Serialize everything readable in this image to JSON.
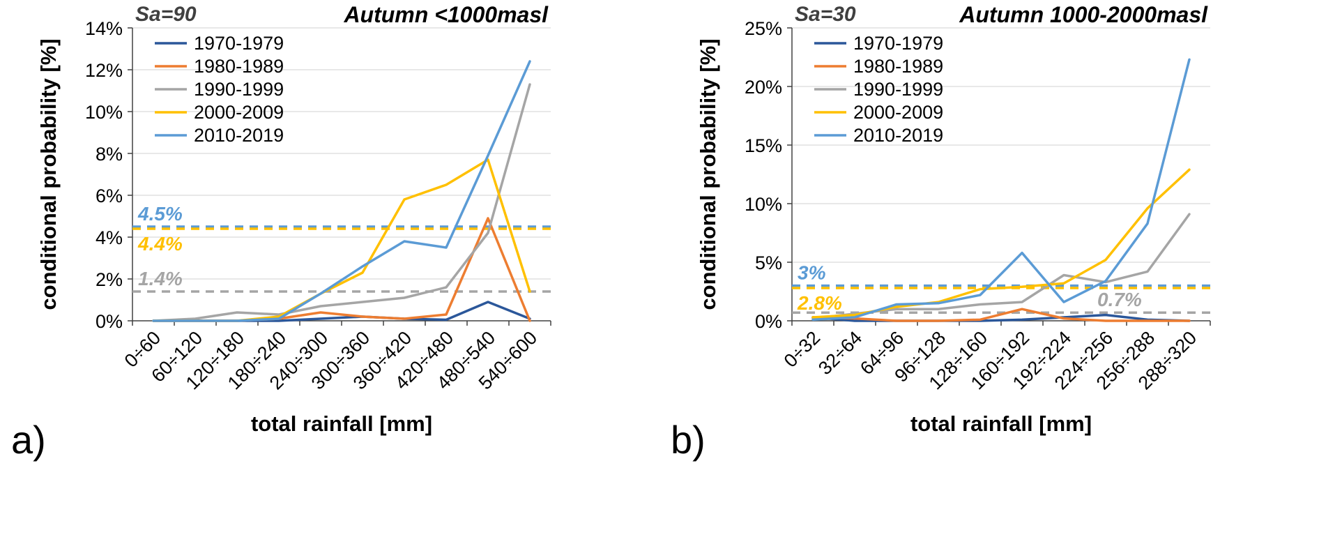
{
  "chart_data": [
    {
      "type": "line",
      "panel_label": "a)",
      "annotation": "Sa=90",
      "title": "Autumn <1000masl",
      "xlabel": "total rainfall [mm]",
      "ylabel": "conditional probability [%]",
      "categories": [
        "0÷60",
        "60÷120",
        "120÷180",
        "180÷240",
        "240÷300",
        "300÷360",
        "360÷420",
        "420÷480",
        "480÷540",
        "540÷600"
      ],
      "ylim": [
        0,
        14
      ],
      "ytick_values": [
        0,
        2,
        4,
        6,
        8,
        10,
        12,
        14
      ],
      "ytick_labels": [
        "0%",
        "2%",
        "4%",
        "6%",
        "8%",
        "10%",
        "12%",
        "14%"
      ],
      "grid": true,
      "legend_position": "top-left-inside",
      "series": [
        {
          "name": "1970-1979",
          "color": "#2B579A",
          "values": [
            0,
            0,
            0,
            0,
            0.1,
            0.2,
            0.1,
            0.05,
            0.9,
            0.1
          ]
        },
        {
          "name": "1980-1989",
          "color": "#ED7D31",
          "values": [
            0,
            0,
            0,
            0.1,
            0.4,
            0.2,
            0.1,
            0.3,
            4.9,
            0
          ]
        },
        {
          "name": "1990-1999",
          "color": "#A5A5A5",
          "values": [
            0,
            0.1,
            0.4,
            0.3,
            0.7,
            0.9,
            1.1,
            1.6,
            4.2,
            11.3
          ]
        },
        {
          "name": "2000-2009",
          "color": "#FFC000",
          "values": [
            0,
            0,
            0,
            0.2,
            1.3,
            2.3,
            5.8,
            6.5,
            7.7,
            1.4
          ]
        },
        {
          "name": "2010-2019",
          "color": "#5B9BD5",
          "values": [
            0,
            0,
            0,
            0.1,
            1.3,
            2.6,
            3.8,
            3.5,
            7.9,
            12.4
          ]
        }
      ],
      "reference_lines": [
        {
          "value": 4.5,
          "label": "4.5%",
          "color": "#5B9BD5",
          "label_anchor": "left",
          "label_above": true
        },
        {
          "value": 4.4,
          "label": "4.4%",
          "color": "#FFC000",
          "label_anchor": "left",
          "label_above": false
        },
        {
          "value": 1.4,
          "label": "1.4%",
          "color": "#A5A5A5",
          "label_anchor": "left",
          "label_above": true
        }
      ]
    },
    {
      "type": "line",
      "panel_label": "b)",
      "annotation": "Sa=30",
      "title": "Autumn 1000-2000masl",
      "xlabel": "total rainfall [mm]",
      "ylabel": "conditional probability [%]",
      "categories": [
        "0÷32",
        "32÷64",
        "64÷96",
        "96÷128",
        "128÷160",
        "160÷192",
        "192÷224",
        "224÷256",
        "256÷288",
        "288÷320"
      ],
      "ylim": [
        0,
        25
      ],
      "ytick_values": [
        0,
        5,
        10,
        15,
        20,
        25
      ],
      "ytick_labels": [
        "0%",
        "5%",
        "10%",
        "15%",
        "20%",
        "25%"
      ],
      "grid": true,
      "legend_position": "top-left-inside",
      "series": [
        {
          "name": "1970-1979",
          "color": "#2B579A",
          "values": [
            0.3,
            0,
            0,
            0,
            0,
            0.1,
            0.3,
            0.5,
            0.1,
            0
          ]
        },
        {
          "name": "1980-1989",
          "color": "#ED7D31",
          "values": [
            0.3,
            0.2,
            0,
            0,
            0.1,
            1.0,
            0.2,
            0,
            0,
            0
          ]
        },
        {
          "name": "1990-1999",
          "color": "#A5A5A5",
          "values": [
            0.2,
            0.6,
            1.0,
            1.0,
            1.4,
            1.6,
            3.9,
            3.3,
            4.2,
            9.1
          ]
        },
        {
          "name": "2000-2009",
          "color": "#FFC000",
          "values": [
            0.3,
            0.5,
            1.2,
            1.6,
            2.7,
            2.9,
            3.2,
            5.2,
            9.6,
            12.9
          ]
        },
        {
          "name": "2010-2019",
          "color": "#5B9BD5",
          "values": [
            0.1,
            0.3,
            1.4,
            1.5,
            2.2,
            5.8,
            1.6,
            3.4,
            8.3,
            22.3
          ]
        }
      ],
      "reference_lines": [
        {
          "value": 3.0,
          "label": "3%",
          "color": "#5B9BD5",
          "label_anchor": "left",
          "label_above": true
        },
        {
          "value": 2.8,
          "label": "2.8%",
          "color": "#FFC000",
          "label_anchor": "left",
          "label_above": false
        },
        {
          "value": 0.7,
          "label": "0.7%",
          "color": "#A5A5A5",
          "label_anchor": "right",
          "label_above": true
        }
      ]
    }
  ],
  "style_colors": {
    "grid": "#D9D9D9",
    "axis": "#404040",
    "annotation_text": "#404040",
    "title_text": "#000000",
    "background": "#FFFFFF"
  }
}
